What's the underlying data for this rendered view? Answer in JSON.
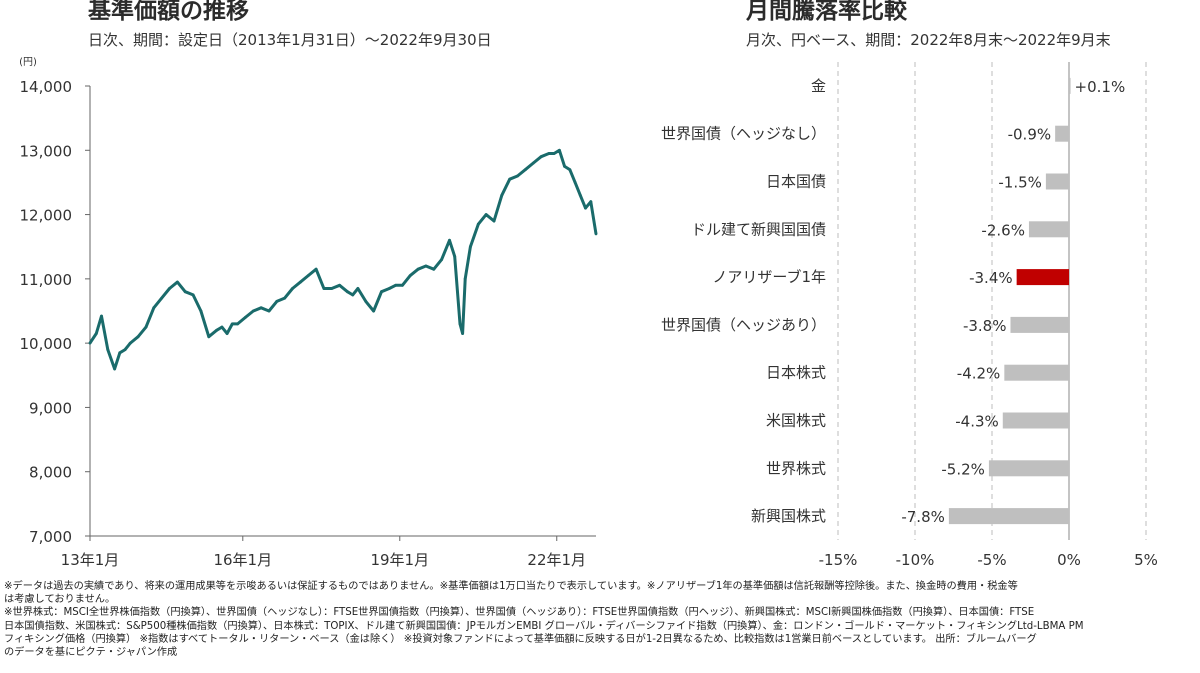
{
  "left_chart": {
    "title": "基準価額の推移",
    "subtitle": "日次、期間：設定日（2013年1月31日）～2022年9月30日",
    "chart_data": {
      "type": "line",
      "title": "基準価額の推移",
      "ylabel": "(円)",
      "ylim": [
        7000,
        14000
      ],
      "yticks": [
        7000,
        8000,
        9000,
        10000,
        11000,
        12000,
        13000,
        14000
      ],
      "ytick_labels": [
        "7,000",
        "8,000",
        "9,000",
        "10,000",
        "11,000",
        "12,000",
        "13,000",
        "14,000"
      ],
      "xlim": [
        2013.08,
        2022.75
      ],
      "xticks": [
        2013.0,
        2016.0,
        2019.0,
        2022.0
      ],
      "xtick_labels": [
        "13年1月",
        "16年1月",
        "19年1月",
        "22年1月"
      ],
      "color": "#1a6b6b",
      "series": [
        {
          "x": [
            2013.08,
            2013.2,
            2013.3,
            2013.42,
            2013.55,
            2013.65,
            2013.75,
            2013.85,
            2014.0,
            2014.15,
            2014.3,
            2014.45,
            2014.6,
            2014.75,
            2014.9,
            2015.05,
            2015.2,
            2015.35,
            2015.5,
            2015.6,
            2015.7,
            2015.8,
            2015.9,
            2016.05,
            2016.2,
            2016.35,
            2016.5,
            2016.65,
            2016.8,
            2016.95,
            2017.1,
            2017.25,
            2017.4,
            2017.55,
            2017.7,
            2017.85,
            2018.0,
            2018.1,
            2018.2,
            2018.35,
            2018.5,
            2018.65,
            2018.8,
            2018.92,
            2019.05,
            2019.2,
            2019.35,
            2019.5,
            2019.65,
            2019.8,
            2019.95,
            2020.05,
            2020.15,
            2020.2,
            2020.25,
            2020.35,
            2020.5,
            2020.65,
            2020.8,
            2020.95,
            2021.1,
            2021.25,
            2021.4,
            2021.55,
            2021.7,
            2021.85,
            2021.95,
            2022.05,
            2022.15,
            2022.25,
            2022.35,
            2022.45,
            2022.55,
            2022.65,
            2022.75
          ],
          "y": [
            10000,
            10150,
            10420,
            9900,
            9600,
            9850,
            9900,
            10000,
            10100,
            10250,
            10550,
            10700,
            10850,
            10950,
            10800,
            10750,
            10500,
            10100,
            10200,
            10250,
            10150,
            10300,
            10300,
            10400,
            10500,
            10550,
            10500,
            10650,
            10700,
            10850,
            10950,
            11050,
            11150,
            10850,
            10850,
            10900,
            10800,
            10750,
            10850,
            10650,
            10500,
            10800,
            10850,
            10900,
            10900,
            11050,
            11150,
            11200,
            11150,
            11300,
            11600,
            11350,
            10300,
            10150,
            11000,
            11500,
            11850,
            12000,
            11900,
            12300,
            12550,
            12600,
            12700,
            12800,
            12900,
            12950,
            12950,
            13000,
            12750,
            12700,
            12500,
            12300,
            12100,
            12200,
            11700
          ]
        }
      ]
    }
  },
  "right_chart": {
    "title": "月間騰落率比較",
    "subtitle": "月次、円ベース、期間：2022年8月末～2022年9月末",
    "chart_data": {
      "type": "bar",
      "orientation": "horizontal",
      "title": "月間騰落率比較",
      "xlim": [
        -15,
        5
      ],
      "xticks": [
        -15,
        -10,
        -5,
        0,
        5
      ],
      "xtick_labels": [
        "-15%",
        "-10%",
        "-5%",
        "0%",
        "5%"
      ],
      "categories": [
        "金",
        "世界国債（ヘッジなし）",
        "日本国債",
        "ドル建て新興国国債",
        "ノアリザーブ1年",
        "世界国債（ヘッジあり）",
        "日本株式",
        "米国株式",
        "世界株式",
        "新興国株式"
      ],
      "values": [
        0.1,
        -0.9,
        -1.5,
        -2.6,
        -3.4,
        -3.8,
        -4.2,
        -4.3,
        -5.2,
        -7.8
      ],
      "value_labels": [
        "+0.1%",
        "-0.9%",
        "-1.5%",
        "-2.6%",
        "-3.4%",
        "-3.8%",
        "-4.2%",
        "-4.3%",
        "-5.2%",
        "-7.8%"
      ],
      "colors": [
        "#bfbfbf",
        "#bfbfbf",
        "#bfbfbf",
        "#bfbfbf",
        "#c00000",
        "#bfbfbf",
        "#bfbfbf",
        "#bfbfbf",
        "#bfbfbf",
        "#bfbfbf"
      ],
      "grid": true
    }
  },
  "footnotes": [
    "※データは過去の実績であり、将来の運用成果等を示唆あるいは保証するものではありません。※基準価額は1万口当たりで表示しています。※ノアリザーブ1年の基準価額は信託報酬等控除後。また、換金時の費用・税金等",
    "は考慮しておりません。",
    "※世界株式：MSCI全世界株価指数（円換算）、世界国債（ヘッジなし）：FTSE世界国債指数（円換算）、世界国債（ヘッジあり）：FTSE世界国債指数（円ヘッジ）、新興国株式：MSCI新興国株価指数（円換算）、日本国債：FTSE",
    "日本国債指数、米国株式：S&P500種株価指数（円換算）、日本株式：TOPIX、ドル建て新興国国債：JPモルガンEMBI グローバル・ディバーシファイド指数（円換算）、金：ロンドン・ゴールド・マーケット・フィキシングLtd-LBMA PM",
    "フィキシング価格（円換算） ※指数はすべてトータル・リターン・ベース（金は除く） ※投資対象ファンドによって基準価額に反映する日が1-2日異なるため、比較指数は1営業日前ベースとしています。 出所：ブルームバーグ",
    "のデータを基にピクテ・ジャパン作成"
  ]
}
